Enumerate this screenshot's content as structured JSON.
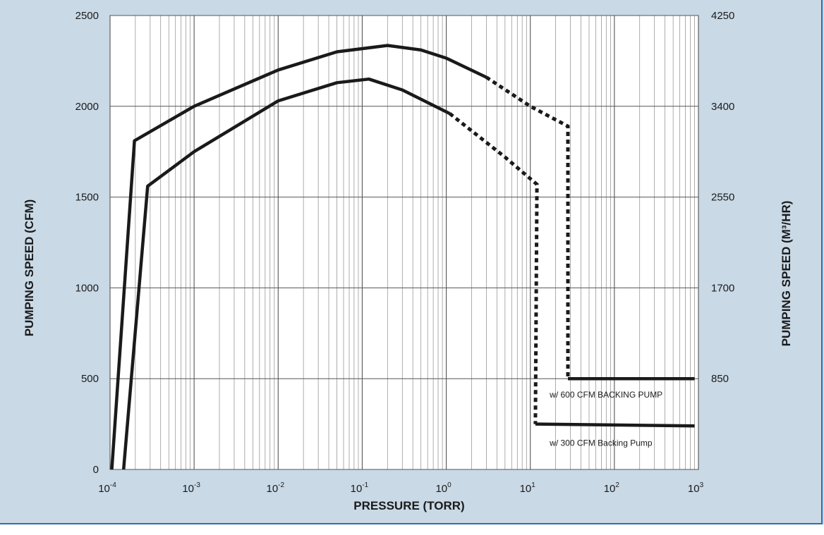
{
  "chart_data": {
    "type": "line",
    "x_scale": "log",
    "xlim": [
      0.0001,
      1000
    ],
    "ylim": [
      0,
      2500
    ],
    "y2lim": [
      0,
      4250
    ],
    "xlabel": "PRESSURE (TORR)",
    "ylabel": "PUMPING SPEED (CFM)",
    "y2label": "PUMPING SPEED (M³/HR)",
    "grid": true,
    "x_ticks": [
      {
        "value": 0.0001,
        "base": "10",
        "exp": "-4"
      },
      {
        "value": 0.001,
        "base": "10",
        "exp": "-3"
      },
      {
        "value": 0.01,
        "base": "10",
        "exp": "-2"
      },
      {
        "value": 0.1,
        "base": "10",
        "exp": "-1"
      },
      {
        "value": 1,
        "base": "10",
        "exp": "0"
      },
      {
        "value": 10,
        "base": "10",
        "exp": "1"
      },
      {
        "value": 100,
        "base": "10",
        "exp": "2"
      },
      {
        "value": 1000,
        "base": "10",
        "exp": "3"
      }
    ],
    "y_ticks": [
      0,
      500,
      1000,
      1500,
      2000,
      2500
    ],
    "y2_ticks": [
      {
        "value": 850,
        "label": "850"
      },
      {
        "value": 1700,
        "label": "1700"
      },
      {
        "value": 2550,
        "label": "2550"
      },
      {
        "value": 3400,
        "label": "3400"
      },
      {
        "value": 4250,
        "label": "4250"
      }
    ],
    "series": [
      {
        "name": "w/ 600 CFM BACKING PUMP",
        "color": "#1a1a1a",
        "solid": [
          [
            0.000105,
            0
          ],
          [
            0.000195,
            1810
          ],
          [
            0.001,
            2000
          ],
          [
            0.01,
            2200
          ],
          [
            0.05,
            2300
          ],
          [
            0.2,
            2335
          ],
          [
            0.5,
            2310
          ],
          [
            1,
            2265
          ],
          [
            3,
            2160
          ]
        ],
        "dashed": [
          [
            3,
            2160
          ],
          [
            10,
            2000
          ],
          [
            28,
            1890
          ],
          [
            28,
            500
          ]
        ],
        "tail": [
          [
            28,
            500
          ],
          [
            900,
            500
          ]
        ]
      },
      {
        "name": "w/ 300 CFM Backing Pump",
        "color": "#1a1a1a",
        "solid": [
          [
            0.000145,
            0
          ],
          [
            0.00028,
            1560
          ],
          [
            0.001,
            1750
          ],
          [
            0.01,
            2030
          ],
          [
            0.05,
            2130
          ],
          [
            0.12,
            2150
          ],
          [
            0.3,
            2090
          ],
          [
            1.1,
            1960
          ]
        ],
        "dashed": [
          [
            1.1,
            1960
          ],
          [
            5,
            1720
          ],
          [
            12,
            1570
          ],
          [
            11.5,
            250
          ]
        ],
        "tail": [
          [
            11.5,
            250
          ],
          [
            900,
            240
          ]
        ]
      }
    ],
    "annotations": [
      {
        "text": "w/ 600 CFM BACKING PUMP",
        "x": 17,
        "y": 395
      },
      {
        "text": "w/ 300 CFM Backing Pump",
        "x": 17,
        "y": 130
      }
    ]
  }
}
